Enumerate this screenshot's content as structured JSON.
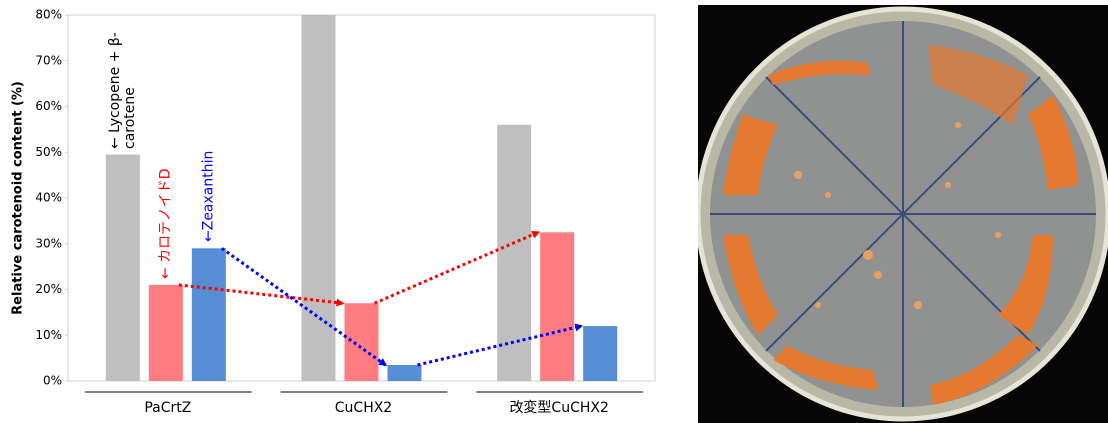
{
  "chart_data": {
    "type": "bar",
    "y_label": "Relative carotenoid content (%)",
    "categories": [
      "PaCrtZ",
      "CuCHX2",
      "改変型CuCHX2"
    ],
    "series": [
      {
        "name": "← Lycopene + β-carotene",
        "color": "#bfbfbf",
        "label_color": "#000000",
        "values": [
          49.5,
          80,
          56
        ]
      },
      {
        "name": "← カロテノイドD",
        "color": "#ff7c80",
        "label_color": "#ff0000",
        "values": [
          21,
          17,
          32.5
        ]
      },
      {
        "name": "←Zeaxanthin",
        "color": "#558ed5",
        "label_color": "#0000ff",
        "values": [
          29,
          3.5,
          12
        ]
      }
    ],
    "ylim": [
      0,
      80
    ],
    "yticks": [
      {
        "value": 0,
        "label": "0%"
      },
      {
        "value": 10,
        "label": "10%"
      },
      {
        "value": 20,
        "label": "20%"
      },
      {
        "value": 30,
        "label": "30%"
      },
      {
        "value": 40,
        "label": "40%"
      },
      {
        "value": 50,
        "label": "50%"
      },
      {
        "value": 60,
        "label": "60%"
      },
      {
        "value": 70,
        "label": "70%"
      },
      {
        "value": 80,
        "label": "80%"
      }
    ],
    "grid": false,
    "trend_arrows": true
  }
}
